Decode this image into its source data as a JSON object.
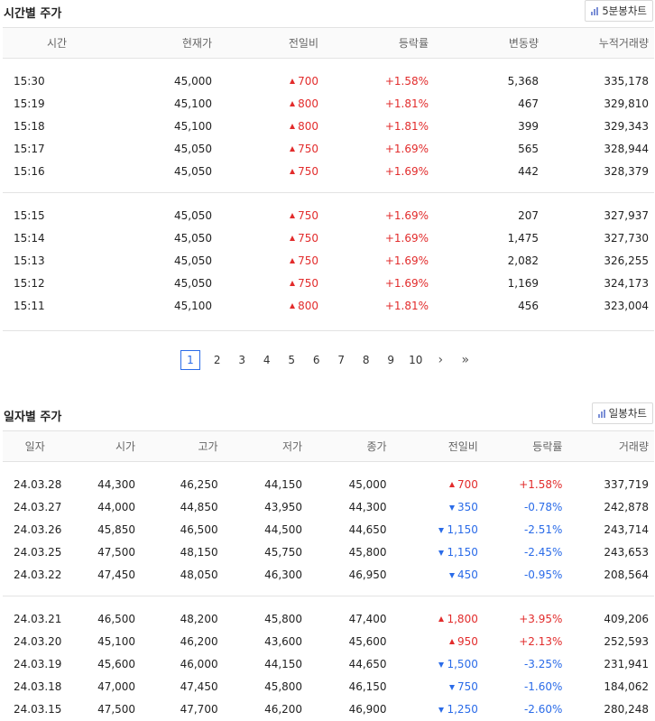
{
  "intraday": {
    "title": "시간별 주가",
    "chart_button": "5분봉차트",
    "columns": [
      "시간",
      "현재가",
      "전일비",
      "등락률",
      "변동량",
      "누적거래량"
    ],
    "groups": [
      [
        {
          "time": "15:30",
          "price": "45,000",
          "diff": "700",
          "dir": "up",
          "rate": "+1.58%",
          "vol": "5,368",
          "cum": "335,178"
        },
        {
          "time": "15:19",
          "price": "45,100",
          "diff": "800",
          "dir": "up",
          "rate": "+1.81%",
          "vol": "467",
          "cum": "329,810"
        },
        {
          "time": "15:18",
          "price": "45,100",
          "diff": "800",
          "dir": "up",
          "rate": "+1.81%",
          "vol": "399",
          "cum": "329,343"
        },
        {
          "time": "15:17",
          "price": "45,050",
          "diff": "750",
          "dir": "up",
          "rate": "+1.69%",
          "vol": "565",
          "cum": "328,944"
        },
        {
          "time": "15:16",
          "price": "45,050",
          "diff": "750",
          "dir": "up",
          "rate": "+1.69%",
          "vol": "442",
          "cum": "328,379"
        }
      ],
      [
        {
          "time": "15:15",
          "price": "45,050",
          "diff": "750",
          "dir": "up",
          "rate": "+1.69%",
          "vol": "207",
          "cum": "327,937"
        },
        {
          "time": "15:14",
          "price": "45,050",
          "diff": "750",
          "dir": "up",
          "rate": "+1.69%",
          "vol": "1,475",
          "cum": "327,730"
        },
        {
          "time": "15:13",
          "price": "45,050",
          "diff": "750",
          "dir": "up",
          "rate": "+1.69%",
          "vol": "2,082",
          "cum": "326,255"
        },
        {
          "time": "15:12",
          "price": "45,050",
          "diff": "750",
          "dir": "up",
          "rate": "+1.69%",
          "vol": "1,169",
          "cum": "324,173"
        },
        {
          "time": "15:11",
          "price": "45,100",
          "diff": "800",
          "dir": "up",
          "rate": "+1.81%",
          "vol": "456",
          "cum": "323,004"
        }
      ]
    ],
    "pagination": {
      "current": "1",
      "pages": [
        "2",
        "3",
        "4",
        "5",
        "6",
        "7",
        "8",
        "9",
        "10"
      ],
      "next": "›",
      "last": "»"
    }
  },
  "daily": {
    "title": "일자별 주가",
    "chart_button": "일봉차트",
    "columns": [
      "일자",
      "시가",
      "고가",
      "저가",
      "종가",
      "전일비",
      "등락률",
      "거래량"
    ],
    "groups": [
      [
        {
          "date": "24.03.28",
          "open": "44,300",
          "high": "46,250",
          "low": "44,150",
          "close": "45,000",
          "diff": "700",
          "dir": "up",
          "rate": "+1.58%",
          "vol": "337,719"
        },
        {
          "date": "24.03.27",
          "open": "44,000",
          "high": "44,850",
          "low": "43,950",
          "close": "44,300",
          "diff": "350",
          "dir": "down",
          "rate": "-0.78%",
          "vol": "242,878"
        },
        {
          "date": "24.03.26",
          "open": "45,850",
          "high": "46,500",
          "low": "44,500",
          "close": "44,650",
          "diff": "1,150",
          "dir": "down",
          "rate": "-2.51%",
          "vol": "243,714"
        },
        {
          "date": "24.03.25",
          "open": "47,500",
          "high": "48,150",
          "low": "45,750",
          "close": "45,800",
          "diff": "1,150",
          "dir": "down",
          "rate": "-2.45%",
          "vol": "243,653"
        },
        {
          "date": "24.03.22",
          "open": "47,450",
          "high": "48,050",
          "low": "46,300",
          "close": "46,950",
          "diff": "450",
          "dir": "down",
          "rate": "-0.95%",
          "vol": "208,564"
        }
      ],
      [
        {
          "date": "24.03.21",
          "open": "46,500",
          "high": "48,200",
          "low": "45,800",
          "close": "47,400",
          "diff": "1,800",
          "dir": "up",
          "rate": "+3.95%",
          "vol": "409,206"
        },
        {
          "date": "24.03.20",
          "open": "45,100",
          "high": "46,200",
          "low": "43,600",
          "close": "45,600",
          "diff": "950",
          "dir": "up",
          "rate": "+2.13%",
          "vol": "252,593"
        },
        {
          "date": "24.03.19",
          "open": "45,600",
          "high": "46,000",
          "low": "44,150",
          "close": "44,650",
          "diff": "1,500",
          "dir": "down",
          "rate": "-3.25%",
          "vol": "231,941"
        },
        {
          "date": "24.03.18",
          "open": "47,000",
          "high": "47,450",
          "low": "45,800",
          "close": "46,150",
          "diff": "750",
          "dir": "down",
          "rate": "-1.60%",
          "vol": "184,062"
        },
        {
          "date": "24.03.15",
          "open": "47,500",
          "high": "47,700",
          "low": "46,200",
          "close": "46,900",
          "diff": "1,250",
          "dir": "down",
          "rate": "-2.60%",
          "vol": "280,248"
        }
      ]
    ]
  },
  "colors": {
    "up": "#e22c2c",
    "down": "#2a6be8",
    "border": "#e3e3e3",
    "accent": "#2a6be8"
  }
}
